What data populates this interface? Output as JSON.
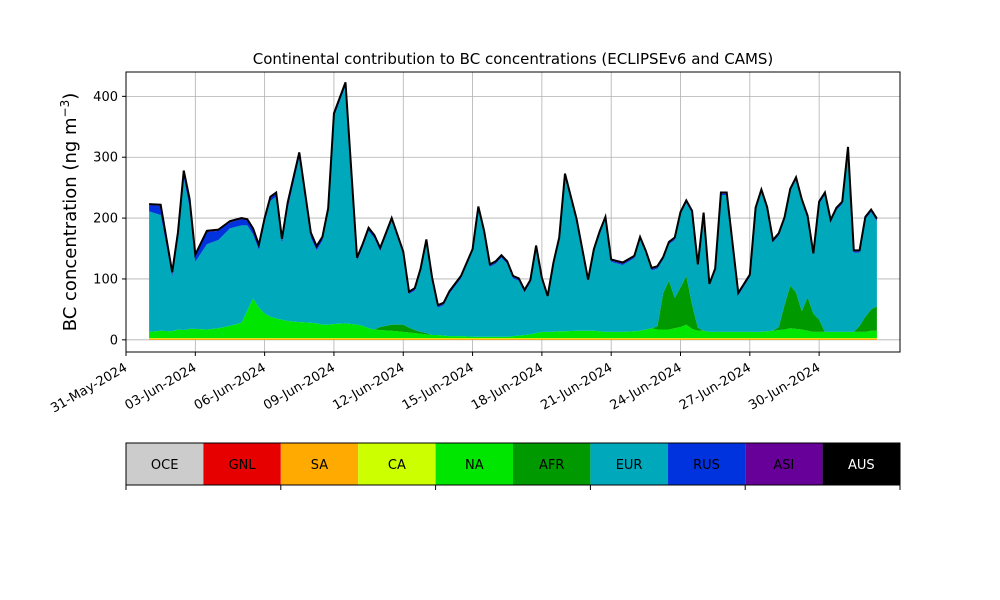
{
  "chart_data": {
    "type": "area",
    "title": "Continental contribution to BC concentrations (ECLIPSEv6 and CAMS)",
    "ylabel": "BC concentration (ng m",
    "ylabel_sup": "−3",
    "ylabel_close": ")",
    "xlabel": "",
    "stacked": true,
    "grid": true,
    "ylim": [
      -20,
      440
    ],
    "xlim": [
      "2024-05-31",
      "2024-07-03T12:00"
    ],
    "yticks": [
      0,
      100,
      200,
      300,
      400
    ],
    "xticks": [
      "31-May-2024",
      "03-Jun-2024",
      "06-Jun-2024",
      "09-Jun-2024",
      "12-Jun-2024",
      "15-Jun-2024",
      "18-Jun-2024",
      "21-Jun-2024",
      "24-Jun-2024",
      "27-Jun-2024",
      "30-Jun-2024"
    ],
    "x": [
      "2024-06-01",
      "2024-06-01T12:00",
      "2024-06-02",
      "2024-06-02T06:00",
      "2024-06-02T12:00",
      "2024-06-02T18:00",
      "2024-06-03",
      "2024-06-03T12:00",
      "2024-06-04",
      "2024-06-04T12:00",
      "2024-06-05",
      "2024-06-05T06:00",
      "2024-06-05T12:00",
      "2024-06-05T18:00",
      "2024-06-06",
      "2024-06-06T06:00",
      "2024-06-06T12:00",
      "2024-06-06T18:00",
      "2024-06-07",
      "2024-06-07T12:00",
      "2024-06-08",
      "2024-06-08T06:00",
      "2024-06-08T12:00",
      "2024-06-08T18:00",
      "2024-06-09",
      "2024-06-09T12:00",
      "2024-06-10",
      "2024-06-10T06:00",
      "2024-06-10T12:00",
      "2024-06-10T18:00",
      "2024-06-11",
      "2024-06-11T12:00",
      "2024-06-12",
      "2024-06-12T06:00",
      "2024-06-12T12:00",
      "2024-06-12T18:00",
      "2024-06-13",
      "2024-06-13T06:00",
      "2024-06-13T12:00",
      "2024-06-13T18:00",
      "2024-06-14",
      "2024-06-14T12:00",
      "2024-06-15",
      "2024-06-15T06:00",
      "2024-06-15T12:00",
      "2024-06-15T18:00",
      "2024-06-16",
      "2024-06-16T06:00",
      "2024-06-16T12:00",
      "2024-06-16T18:00",
      "2024-06-17",
      "2024-06-17T06:00",
      "2024-06-17T12:00",
      "2024-06-17T18:00",
      "2024-06-18",
      "2024-06-18T06:00",
      "2024-06-18T12:00",
      "2024-06-18T18:00",
      "2024-06-19",
      "2024-06-19T12:00",
      "2024-06-20",
      "2024-06-20T06:00",
      "2024-06-20T12:00",
      "2024-06-20T18:00",
      "2024-06-21",
      "2024-06-21T12:00",
      "2024-06-22",
      "2024-06-22T06:00",
      "2024-06-22T12:00",
      "2024-06-22T18:00",
      "2024-06-23",
      "2024-06-23T06:00",
      "2024-06-23T12:00",
      "2024-06-23T18:00",
      "2024-06-24",
      "2024-06-24T06:00",
      "2024-06-24T12:00",
      "2024-06-24T18:00",
      "2024-06-25",
      "2024-06-25T06:00",
      "2024-06-25T12:00",
      "2024-06-25T18:00",
      "2024-06-26",
      "2024-06-26T12:00",
      "2024-06-27",
      "2024-06-27T06:00",
      "2024-06-27T12:00",
      "2024-06-27T18:00",
      "2024-06-28",
      "2024-06-28T06:00",
      "2024-06-28T12:00",
      "2024-06-28T18:00",
      "2024-06-29",
      "2024-06-29T06:00",
      "2024-06-29T12:00",
      "2024-06-29T18:00",
      "2024-06-30",
      "2024-06-30T06:00",
      "2024-06-30T12:00",
      "2024-06-30T18:00",
      "2024-07-01",
      "2024-07-01T06:00",
      "2024-07-01T12:00",
      "2024-07-01T18:00",
      "2024-07-02",
      "2024-07-02T06:00",
      "2024-07-02T12:00"
    ],
    "series": [
      {
        "name": "OCE",
        "color": "#cccccc",
        "values": [
          0,
          0,
          0,
          0,
          0,
          0,
          0,
          0,
          0,
          0,
          0,
          0,
          0,
          0,
          0,
          0,
          0,
          0,
          0,
          0,
          0,
          0,
          0,
          0,
          0,
          0,
          0,
          0,
          0,
          0,
          0,
          0,
          0,
          0,
          0,
          0,
          0,
          0,
          0,
          0,
          0,
          0,
          0,
          0,
          0,
          0,
          0,
          0,
          0,
          0,
          0,
          0,
          0,
          0,
          0,
          0,
          0,
          0,
          0,
          0,
          0,
          0,
          0,
          0,
          0,
          0,
          0,
          0,
          0,
          0,
          0,
          0,
          0,
          0,
          0,
          0,
          0,
          0,
          0,
          0,
          0,
          0,
          0,
          0,
          0,
          0,
          0,
          0,
          0,
          0,
          0,
          0,
          0,
          0,
          0,
          0,
          0,
          0,
          0,
          0,
          0,
          0,
          0,
          0,
          0,
          0,
          0
        ]
      },
      {
        "name": "GNL",
        "color": "#e60000",
        "values": [
          0,
          0,
          0,
          0,
          0,
          0,
          0,
          0,
          0,
          0,
          0,
          0,
          0,
          0,
          0,
          0,
          0,
          0,
          0,
          0,
          0,
          0,
          0,
          0,
          0,
          0,
          0,
          0,
          0,
          0,
          0,
          0,
          0,
          0,
          0,
          0,
          0,
          0,
          0,
          0,
          0,
          0,
          0,
          0,
          0,
          0,
          0,
          0,
          0,
          0,
          0,
          0,
          0,
          0,
          0,
          0,
          0,
          0,
          0,
          0,
          0,
          0,
          0,
          0,
          0,
          0,
          0,
          0,
          0,
          0,
          0,
          0,
          0,
          0,
          0,
          0,
          0,
          0,
          0,
          0,
          0,
          0,
          0,
          0,
          0,
          0,
          0,
          0,
          0,
          0,
          0,
          0,
          0,
          0,
          0,
          0,
          0,
          0,
          0,
          0,
          0,
          0,
          0,
          0,
          0,
          0,
          0
        ]
      },
      {
        "name": "SA",
        "color": "#ffaa00",
        "values": [
          2,
          2,
          2,
          2,
          2,
          2,
          2,
          2,
          2,
          2,
          2,
          2,
          2,
          2,
          2,
          2,
          2,
          2,
          2,
          2,
          2,
          2,
          2,
          2,
          2,
          2,
          2,
          2,
          2,
          2,
          2,
          2,
          2,
          2,
          2,
          2,
          2,
          2,
          2,
          2,
          2,
          2,
          2,
          2,
          2,
          2,
          2,
          2,
          2,
          2,
          2,
          2,
          2,
          2,
          2,
          2,
          2,
          2,
          2,
          2,
          2,
          2,
          2,
          2,
          2,
          2,
          2,
          2,
          2,
          2,
          2,
          2,
          2,
          2,
          2,
          2,
          2,
          2,
          2,
          2,
          2,
          2,
          2,
          2,
          2,
          2,
          2,
          2,
          2,
          2,
          2,
          2,
          2,
          2,
          2,
          2,
          2,
          2,
          2,
          2,
          2,
          2,
          2,
          2,
          2,
          2,
          2
        ]
      },
      {
        "name": "CA",
        "color": "#ccff00",
        "values": [
          1,
          1,
          1,
          1,
          1,
          1,
          1,
          1,
          1,
          1,
          1,
          1,
          1,
          1,
          1,
          1,
          1,
          1,
          1,
          1,
          1,
          1,
          1,
          1,
          1,
          1,
          1,
          1,
          1,
          1,
          1,
          1,
          1,
          1,
          1,
          1,
          1,
          1,
          1,
          1,
          1,
          1,
          1,
          1,
          1,
          1,
          1,
          1,
          1,
          1,
          1,
          1,
          1,
          1,
          1,
          1,
          1,
          1,
          1,
          1,
          1,
          1,
          1,
          1,
          1,
          1,
          1,
          1,
          1,
          1,
          1,
          1,
          1,
          1,
          1,
          1,
          1,
          1,
          1,
          1,
          1,
          1,
          1,
          1,
          1,
          1,
          1,
          1,
          1,
          1,
          1,
          1,
          1,
          1,
          1,
          1,
          1,
          1,
          1,
          1,
          1,
          1,
          1,
          1,
          1,
          1,
          1
        ]
      },
      {
        "name": "NA",
        "color": "#00e600",
        "values": [
          10,
          12,
          11,
          14,
          13,
          15,
          15,
          14,
          16,
          20,
          25,
          45,
          65,
          50,
          40,
          35,
          32,
          30,
          28,
          26,
          25,
          24,
          22,
          22,
          23,
          24,
          22,
          20,
          16,
          14,
          13,
          12,
          10,
          9,
          8,
          7,
          6,
          5,
          5,
          4,
          3,
          3,
          2,
          2,
          2,
          2,
          2,
          2,
          2,
          3,
          4,
          5,
          6,
          8,
          10,
          10,
          10,
          11,
          11,
          12,
          12,
          12,
          11,
          10,
          10,
          10,
          11,
          12,
          14,
          16,
          14,
          14,
          14,
          16,
          18,
          22,
          15,
          12,
          12,
          10,
          10,
          10,
          10,
          10,
          10,
          10,
          10,
          11,
          12,
          13,
          14,
          16,
          15,
          14,
          12,
          10,
          10,
          10,
          10,
          10,
          10,
          10,
          10,
          10,
          10,
          12,
          12
        ]
      },
      {
        "name": "AFR",
        "color": "#009900",
        "values": [
          0,
          0,
          0,
          0,
          0,
          0,
          0,
          0,
          0,
          0,
          0,
          0,
          0,
          0,
          0,
          0,
          0,
          0,
          0,
          0,
          0,
          0,
          0,
          0,
          0,
          0,
          0,
          0,
          0,
          0,
          5,
          10,
          12,
          8,
          5,
          3,
          2,
          0,
          0,
          0,
          0,
          0,
          0,
          0,
          0,
          0,
          0,
          0,
          0,
          0,
          0,
          0,
          0,
          0,
          0,
          0,
          0,
          0,
          0,
          0,
          0,
          0,
          0,
          0,
          0,
          0,
          0,
          0,
          0,
          0,
          5,
          60,
          80,
          50,
          65,
          80,
          40,
          5,
          0,
          0,
          0,
          0,
          0,
          0,
          0,
          0,
          0,
          0,
          0,
          5,
          40,
          70,
          60,
          30,
          55,
          30,
          20,
          0,
          0,
          0,
          0,
          0,
          0,
          10,
          25,
          35,
          40
        ]
      },
      {
        "name": "EUR",
        "color": "#00a8bb",
        "values": [
          198,
          190,
          90,
          150,
          250,
          200,
          110,
          140,
          145,
          160,
          160,
          140,
          105,
          95,
          150,
          190,
          200,
          125,
          185,
          270,
          140,
          120,
          138,
          185,
          340,
          390,
          105,
          130,
          160,
          150,
          125,
          170,
          115,
          55,
          65,
          100,
          150,
          90,
          45,
          50,
          70,
          95,
          140,
          210,
          170,
          115,
          120,
          130,
          120,
          95,
          90,
          70,
          85,
          140,
          85,
          55,
          110,
          150,
          255,
          180,
          80,
          130,
          160,
          185,
          115,
          110,
          120,
          150,
          125,
          95,
          95,
          55,
          60,
          95,
          120,
          120,
          150,
          100,
          190,
          75,
          100,
          225,
          225,
          60,
          90,
          200,
          230,
          200,
          145,
          150,
          140,
          155,
          185,
          180,
          130,
          95,
          190,
          225,
          180,
          200,
          210,
          300,
          130,
          120,
          160,
          160,
          140
        ]
      },
      {
        "name": "RUS",
        "color": "#0033dd",
        "values": [
          10,
          15,
          5,
          8,
          10,
          12,
          10,
          20,
          15,
          10,
          10,
          8,
          8,
          6,
          5,
          5,
          5,
          6,
          8,
          7,
          6,
          5,
          4,
          4,
          4,
          4,
          3,
          3,
          3,
          3,
          3,
          3,
          3,
          2,
          2,
          2,
          2,
          2,
          2,
          2,
          2,
          2,
          2,
          2,
          2,
          2,
          2,
          2,
          2,
          2,
          2,
          2,
          2,
          2,
          2,
          2,
          2,
          2,
          2,
          2,
          2,
          2,
          2,
          2,
          2,
          2,
          2,
          2,
          2,
          2,
          2,
          2,
          2,
          2,
          2,
          2,
          2,
          2,
          2,
          2,
          2,
          2,
          2,
          2,
          2,
          2,
          2,
          2,
          2,
          2,
          2,
          2,
          2,
          2,
          2,
          2,
          2,
          2,
          2,
          2,
          2,
          2,
          2,
          2,
          2,
          2,
          2
        ]
      },
      {
        "name": "ASI",
        "color": "#660099",
        "values": [
          2,
          2,
          2,
          2,
          2,
          2,
          2,
          2,
          2,
          2,
          2,
          2,
          2,
          2,
          2,
          2,
          2,
          2,
          2,
          2,
          2,
          2,
          2,
          2,
          2,
          2,
          2,
          2,
          2,
          2,
          2,
          2,
          2,
          2,
          2,
          2,
          2,
          2,
          2,
          2,
          2,
          2,
          2,
          2,
          2,
          2,
          2,
          2,
          2,
          2,
          2,
          2,
          2,
          2,
          2,
          2,
          2,
          2,
          2,
          2,
          2,
          2,
          2,
          2,
          2,
          2,
          2,
          2,
          2,
          2,
          2,
          2,
          2,
          2,
          2,
          2,
          2,
          2,
          2,
          2,
          2,
          2,
          2,
          2,
          2,
          2,
          2,
          2,
          2,
          2,
          2,
          2,
          2,
          2,
          2,
          2,
          2,
          2,
          2,
          2,
          2,
          2,
          2,
          2,
          2,
          2,
          2
        ]
      },
      {
        "name": "AUS",
        "color": "#000000",
        "values": [
          0,
          0,
          0,
          0,
          0,
          0,
          0,
          0,
          0,
          0,
          0,
          0,
          0,
          0,
          0,
          0,
          0,
          0,
          0,
          0,
          0,
          0,
          0,
          0,
          0,
          0,
          0,
          0,
          0,
          0,
          0,
          0,
          0,
          0,
          0,
          0,
          0,
          0,
          0,
          0,
          0,
          0,
          0,
          0,
          0,
          0,
          0,
          0,
          0,
          0,
          0,
          0,
          0,
          0,
          0,
          0,
          0,
          0,
          0,
          0,
          0,
          0,
          0,
          0,
          0,
          0,
          0,
          0,
          0,
          0,
          0,
          0,
          0,
          0,
          0,
          0,
          0,
          0,
          0,
          0,
          0,
          0,
          0,
          0,
          0,
          0,
          0,
          0,
          0,
          0,
          0,
          0,
          0,
          0,
          0,
          0,
          0,
          0,
          0,
          0,
          0,
          0,
          0,
          0,
          0,
          0,
          0
        ]
      }
    ],
    "total_line_color": "#000000",
    "legend": [
      "OCE",
      "GNL",
      "SA",
      "CA",
      "NA",
      "AFR",
      "EUR",
      "RUS",
      "ASI",
      "AUS"
    ],
    "legend_placement": "bottom colorbar"
  }
}
